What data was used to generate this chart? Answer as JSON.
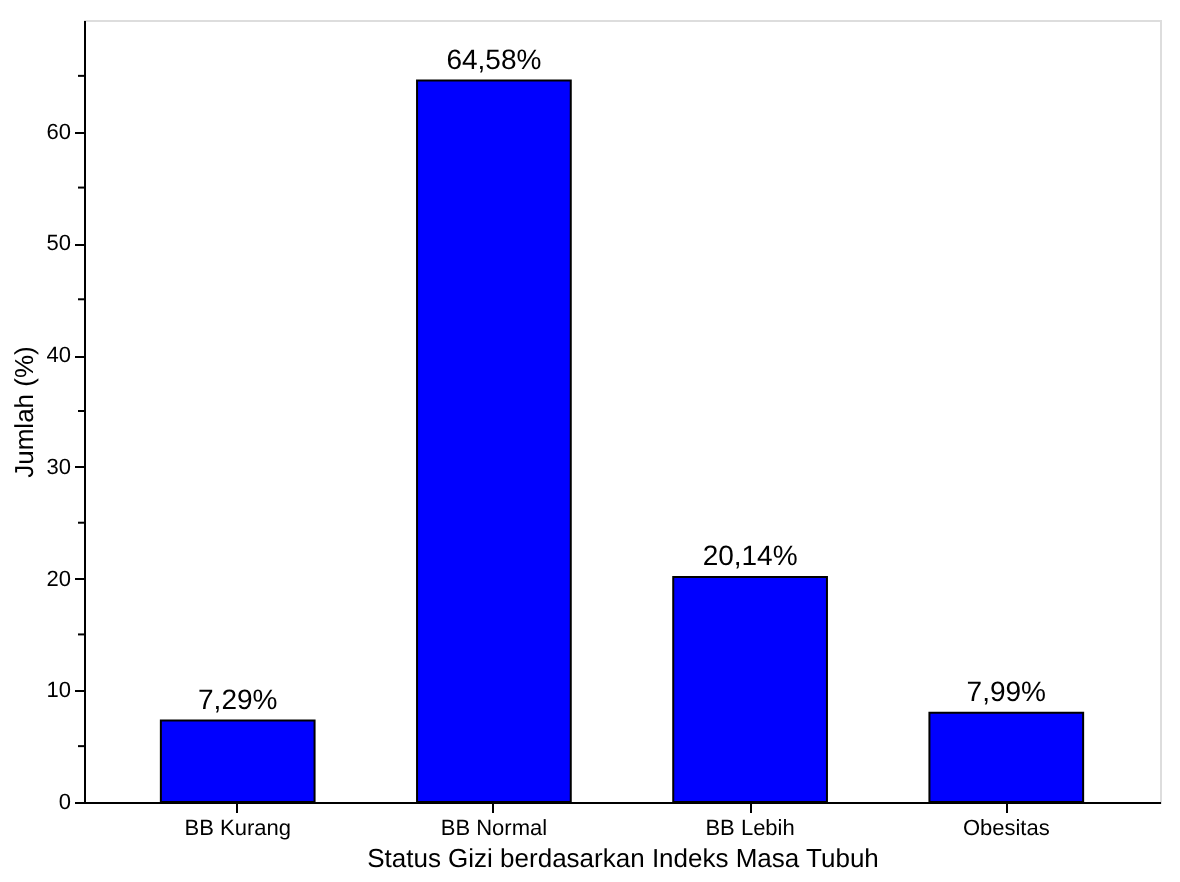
{
  "chart_data": {
    "type": "bar",
    "xlabel": "Status Gizi berdasarkan Indeks Masa Tubuh",
    "ylabel": "Jumlah (%)",
    "categories": [
      "BB Kurang",
      "BB Normal",
      "BB Lebih",
      "Obesitas"
    ],
    "values": [
      7.29,
      64.58,
      20.14,
      7.99
    ],
    "value_labels": [
      "7,29%",
      "64,58%",
      "20,14%",
      "7,99%"
    ],
    "color": "#0000ff",
    "ylim": [
      0,
      70
    ],
    "yticks": [
      0,
      {
        "value": 5,
        "label": null
      },
      10,
      {
        "value": 15,
        "label": null
      },
      20,
      {
        "value": 25,
        "label": null
      },
      30,
      {
        "value": 35,
        "label": null
      },
      40,
      {
        "value": 45,
        "label": null
      },
      50,
      {
        "value": 55,
        "label": null
      },
      60,
      {
        "value": 65,
        "label": null
      }
    ],
    "grid": false
  }
}
